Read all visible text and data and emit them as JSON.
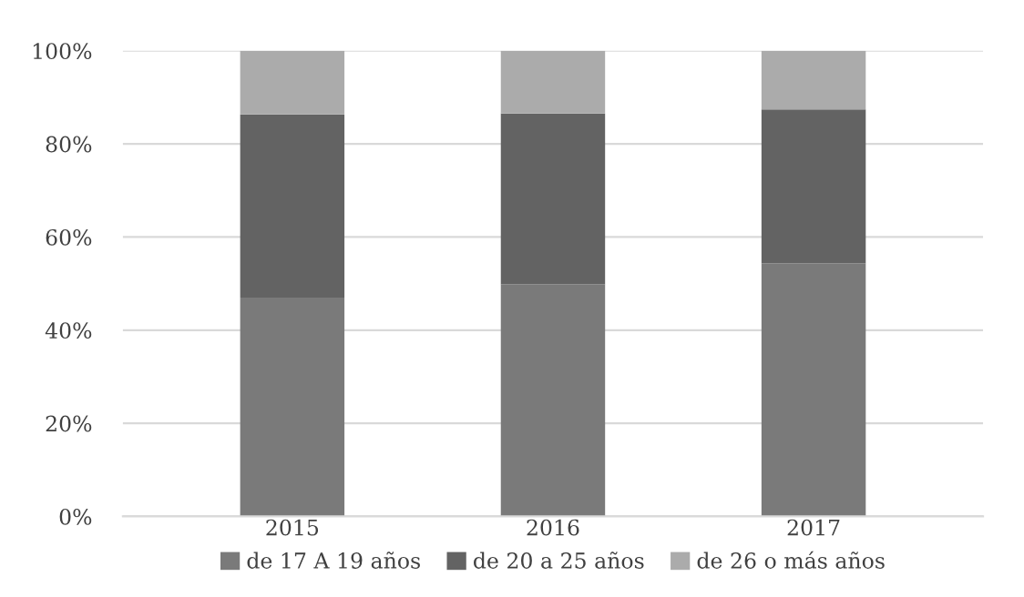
{
  "chart_data": {
    "type": "bar",
    "stacked": true,
    "categories": [
      "2015",
      "2016",
      "2017"
    ],
    "series": [
      {
        "name": "de 17 A 19 años",
        "color": "#7a7a7a",
        "values": [
          47.0,
          49.8,
          54.3
        ]
      },
      {
        "name": "de 20 a 25 años",
        "color": "#636363",
        "values": [
          39.3,
          36.7,
          33.1
        ]
      },
      {
        "name": "de 26 o más años",
        "color": "#ababab",
        "values": [
          13.7,
          13.5,
          12.6
        ]
      }
    ],
    "ylim": [
      0,
      100
    ],
    "yticks": [
      {
        "value": 0,
        "label": "0%"
      },
      {
        "value": 20,
        "label": "20%"
      },
      {
        "value": 40,
        "label": "40%"
      },
      {
        "value": 60,
        "label": "60%"
      },
      {
        "value": 80,
        "label": "80%"
      },
      {
        "value": 100,
        "label": "100%"
      }
    ],
    "grid": "y",
    "legend": "bottom"
  }
}
